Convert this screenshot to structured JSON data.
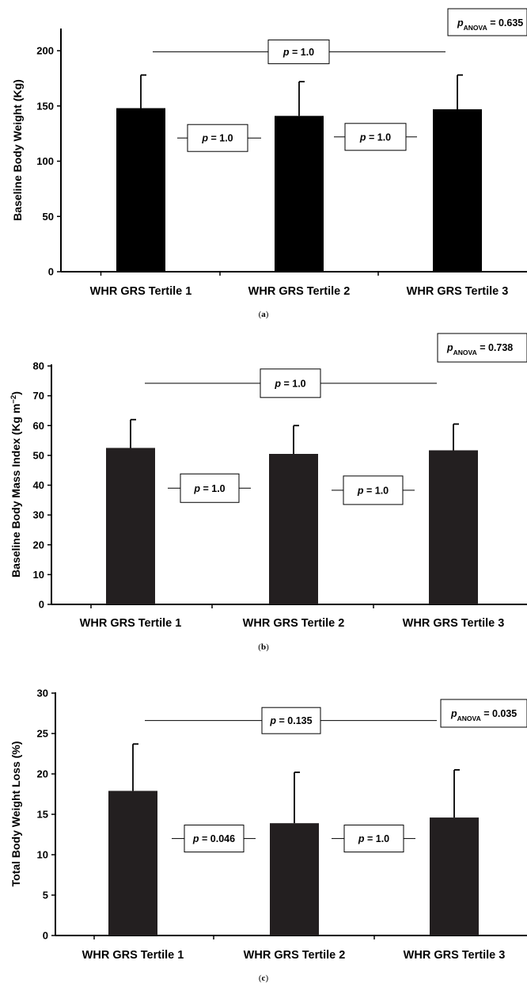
{
  "chart_data": [
    {
      "type": "bar",
      "categories": [
        "WHR GRS Tertile 1",
        "WHR GRS Tertile 2",
        "WHR GRS Tertile 3"
      ],
      "values": [
        148,
        141,
        147
      ],
      "errors": [
        30,
        31,
        31
      ],
      "ylabel": "Baseline Body Weight (Kg)",
      "ylim": [
        0,
        200
      ],
      "ytick_values": [
        0,
        50,
        100,
        150,
        200
      ],
      "ytick_labels": [
        "0",
        "50",
        "100",
        "150",
        "200"
      ],
      "bar_color": "#000000",
      "grid": false,
      "anova": {
        "prefix": "p",
        "sub": "ANOVA",
        "suffix": " = 0.635"
      },
      "comparisons": [
        {
          "pair": [
            1,
            3
          ],
          "text": "= 1.0",
          "level": 199
        },
        {
          "pair": [
            1,
            2
          ],
          "text": "= 1.0",
          "level": 121
        },
        {
          "pair": [
            2,
            3
          ],
          "text": "= 1.0",
          "level": 122
        }
      ],
      "caption": {
        "open": "(",
        "letter": "a",
        "close": ")"
      }
    },
    {
      "type": "bar",
      "categories": [
        "WHR GRS Tertile 1",
        "WHR GRS Tertile 2",
        "WHR GRS Tertile 3"
      ],
      "values": [
        52.5,
        50.5,
        51.7
      ],
      "errors": [
        9.5,
        9.5,
        8.8
      ],
      "ylabel": "Baseline Body Mass Index (Kg m",
      "ylabel_sup": "−2",
      "ylabel_close": ")",
      "ylim": [
        0,
        80
      ],
      "ytick_values": [
        0,
        10,
        20,
        30,
        40,
        50,
        60,
        70,
        80
      ],
      "ytick_labels": [
        "0",
        "10",
        "20",
        "30",
        "40",
        "50",
        "60",
        "70",
        "80"
      ],
      "bar_color": "#231f20",
      "grid": false,
      "anova": {
        "prefix": "p",
        "sub": "ANOVA",
        "suffix": " = 0.738"
      },
      "comparisons": [
        {
          "pair": [
            1,
            3
          ],
          "text": "= 1.0",
          "level": 74.2
        },
        {
          "pair": [
            1,
            2
          ],
          "text": "= 1.0",
          "level": 39
        },
        {
          "pair": [
            2,
            3
          ],
          "text": "= 1.0",
          "level": 38.3
        }
      ],
      "caption": {
        "open": "(",
        "letter": "b",
        "close": ")"
      }
    },
    {
      "type": "bar",
      "categories": [
        "WHR GRS Tertile 1",
        "WHR GRS Tertile 2",
        "WHR GRS Tertile 3"
      ],
      "values": [
        17.9,
        13.9,
        14.6
      ],
      "errors": [
        5.8,
        6.3,
        5.9
      ],
      "ylabel": "Total Body Weight Loss (%)",
      "ylim": [
        0,
        30
      ],
      "ytick_values": [
        0,
        5,
        10,
        15,
        20,
        25,
        30
      ],
      "ytick_labels": [
        "0",
        "5",
        "10",
        "15",
        "20",
        "25",
        "30"
      ],
      "bar_color": "#231f20",
      "grid": false,
      "anova": {
        "prefix": "p",
        "sub": "ANOVA",
        "suffix": " = 0.035"
      },
      "comparisons": [
        {
          "pair": [
            1,
            3
          ],
          "text": "= 0.135",
          "level": 26.6
        },
        {
          "pair": [
            1,
            2
          ],
          "text": "= 0.046",
          "level": 12
        },
        {
          "pair": [
            2,
            3
          ],
          "text": "= 1.0",
          "level": 12
        }
      ],
      "caption": {
        "open": "(",
        "letter": "c",
        "close": ")"
      }
    }
  ]
}
